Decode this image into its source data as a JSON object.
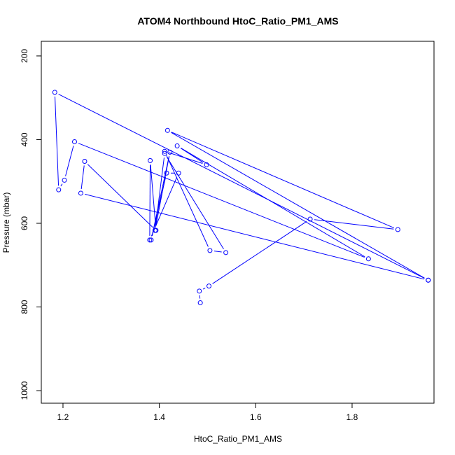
{
  "chart_data": {
    "type": "line",
    "title": "ATOM4 Northbound HtoC_Ratio_PM1_AMS",
    "xlabel": "HtoC_Ratio_PM1_AMS",
    "ylabel": "Pressure (mbar)",
    "xlim": [
      1.155,
      1.97
    ],
    "ylim": [
      1030,
      165
    ],
    "y_inverted": true,
    "x_ticks": [
      "1.2",
      "1.4",
      "1.6",
      "1.8"
    ],
    "x_tick_values": [
      1.2,
      1.4,
      1.6,
      1.8
    ],
    "y_ticks": [
      "200",
      "400",
      "600",
      "800",
      "1000"
    ],
    "y_tick_values": [
      200,
      400,
      600,
      800,
      1000
    ],
    "grid": false,
    "series": [
      {
        "color": "#0000ff",
        "marker": "open-circle",
        "points": [
          {
            "x": 1.485,
            "y": 790
          },
          {
            "x": 1.483,
            "y": 762
          },
          {
            "x": 1.503,
            "y": 750
          },
          {
            "x": 1.713,
            "y": 590
          },
          {
            "x": 1.895,
            "y": 615
          },
          {
            "x": 1.417,
            "y": 378
          },
          {
            "x": 1.958,
            "y": 736
          },
          {
            "x": 1.183,
            "y": 287
          },
          {
            "x": 1.191,
            "y": 520
          },
          {
            "x": 1.203,
            "y": 497
          },
          {
            "x": 1.224,
            "y": 405
          },
          {
            "x": 1.834,
            "y": 685
          },
          {
            "x": 1.437,
            "y": 415
          },
          {
            "x": 1.498,
            "y": 460
          },
          {
            "x": 1.411,
            "y": 428
          },
          {
            "x": 1.505,
            "y": 665
          },
          {
            "x": 1.538,
            "y": 670
          },
          {
            "x": 1.411,
            "y": 433
          },
          {
            "x": 1.391,
            "y": 617
          },
          {
            "x": 1.422,
            "y": 430
          },
          {
            "x": 1.383,
            "y": 640
          },
          {
            "x": 1.415,
            "y": 480
          },
          {
            "x": 1.44,
            "y": 480
          },
          {
            "x": 1.38,
            "y": 640
          },
          {
            "x": 1.381,
            "y": 450
          },
          {
            "x": 1.393,
            "y": 617
          },
          {
            "x": 1.245,
            "y": 452
          },
          {
            "x": 1.237,
            "y": 528
          },
          {
            "x": 1.958,
            "y": 736
          }
        ]
      }
    ]
  }
}
